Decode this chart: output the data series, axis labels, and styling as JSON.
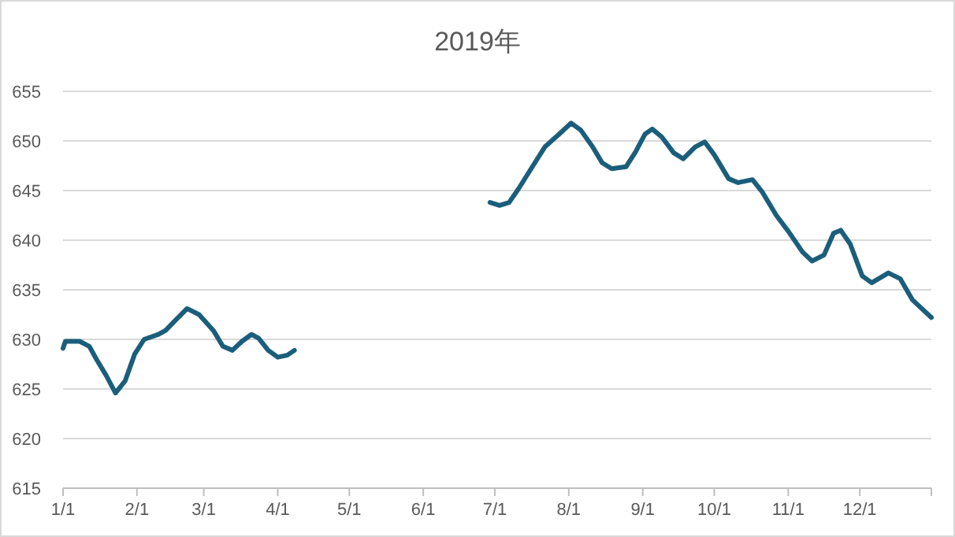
{
  "chart_data": {
    "type": "line",
    "title": "2019年",
    "xlim": [
      "2019-01-01",
      "2019-12-31"
    ],
    "xticks": [
      {
        "value": "2019-01-01",
        "label": "1/1"
      },
      {
        "value": "2019-02-01",
        "label": "2/1"
      },
      {
        "value": "2019-03-01",
        "label": "3/1"
      },
      {
        "value": "2019-04-01",
        "label": "4/1"
      },
      {
        "value": "2019-05-01",
        "label": "5/1"
      },
      {
        "value": "2019-06-01",
        "label": "6/1"
      },
      {
        "value": "2019-07-01",
        "label": "7/1"
      },
      {
        "value": "2019-08-01",
        "label": "8/1"
      },
      {
        "value": "2019-09-01",
        "label": "9/1"
      },
      {
        "value": "2019-10-01",
        "label": "10/1"
      },
      {
        "value": "2019-11-01",
        "label": "11/1"
      },
      {
        "value": "2019-12-01",
        "label": "12/1"
      }
    ],
    "ylim": [
      615,
      655
    ],
    "yticks": [
      615,
      620,
      625,
      630,
      635,
      640,
      645,
      650,
      655
    ],
    "grid": "y",
    "series": [
      {
        "color": "#1b5e7b",
        "x": [
          "2019-01-01",
          "2019-01-02",
          "2019-01-08",
          "2019-01-12",
          "2019-01-15",
          "2019-01-19",
          "2019-01-23",
          "2019-01-27",
          "2019-01-31",
          "2019-02-04",
          "2019-02-10",
          "2019-02-13",
          "2019-02-17",
          "2019-02-22",
          "2019-02-27",
          "2019-03-05",
          "2019-03-09",
          "2019-03-13",
          "2019-03-17",
          "2019-03-21",
          "2019-03-24",
          "2019-03-28",
          "2019-04-01",
          "2019-04-05",
          "2019-04-08"
        ],
        "values": [
          629.1,
          629.8,
          629.8,
          629.3,
          628.0,
          626.4,
          624.6,
          625.8,
          628.5,
          630.0,
          630.5,
          630.9,
          631.9,
          633.1,
          632.5,
          630.9,
          629.3,
          628.9,
          629.8,
          630.5,
          630.1,
          628.9,
          628.2,
          628.4,
          628.9
        ]
      },
      {
        "color": "#1b5e7b",
        "x": [
          "2019-06-29",
          "2019-07-03",
          "2019-07-07",
          "2019-07-11",
          "2019-07-17",
          "2019-07-22",
          "2019-07-28",
          "2019-08-02",
          "2019-08-06",
          "2019-08-11",
          "2019-08-15",
          "2019-08-19",
          "2019-08-25",
          "2019-08-29",
          "2019-09-02",
          "2019-09-05",
          "2019-09-09",
          "2019-09-14",
          "2019-09-18",
          "2019-09-23",
          "2019-09-27",
          "2019-10-01",
          "2019-10-07",
          "2019-10-11",
          "2019-10-17",
          "2019-10-21",
          "2019-10-27",
          "2019-11-01",
          "2019-11-07",
          "2019-11-11",
          "2019-11-16",
          "2019-11-20",
          "2019-11-23",
          "2019-11-27",
          "2019-12-02",
          "2019-12-06",
          "2019-12-13",
          "2019-12-18",
          "2019-12-23",
          "2019-12-31"
        ],
        "values": [
          643.8,
          643.5,
          643.8,
          645.2,
          647.5,
          649.4,
          650.7,
          651.8,
          651.1,
          649.4,
          647.8,
          647.2,
          647.4,
          648.9,
          650.7,
          651.2,
          650.4,
          648.8,
          648.2,
          649.4,
          649.9,
          648.6,
          646.2,
          645.8,
          646.1,
          644.9,
          642.5,
          640.9,
          638.8,
          637.9,
          638.5,
          640.7,
          641.0,
          639.6,
          636.4,
          635.7,
          636.7,
          636.1,
          634.0,
          632.2
        ]
      }
    ]
  }
}
